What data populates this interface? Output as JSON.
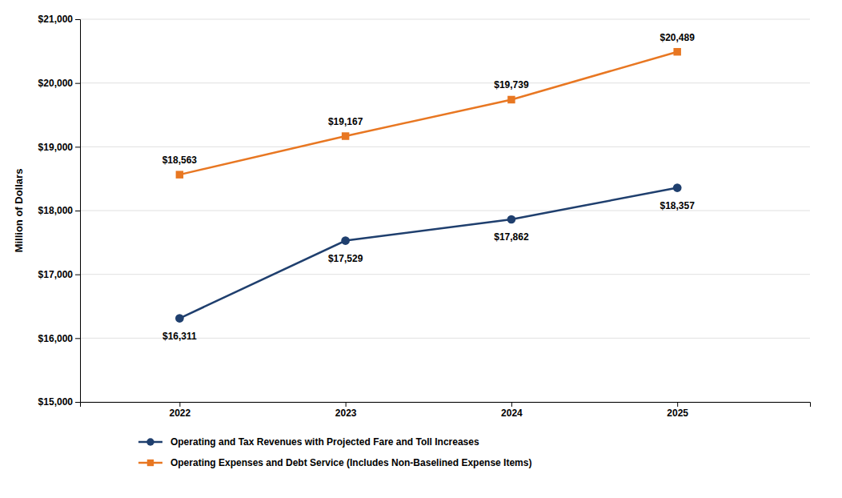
{
  "chart_data": {
    "type": "line",
    "x": [
      2022,
      2023,
      2024,
      2025
    ],
    "xlim": [
      2021.4,
      2025.8
    ],
    "xticks": [
      2022,
      2023,
      2024,
      2025
    ],
    "ylabel": "Million of Dollars",
    "ylim": [
      15000,
      21000
    ],
    "yticks": [
      {
        "value": 15000,
        "label": "$15,000"
      },
      {
        "value": 16000,
        "label": "$16,000"
      },
      {
        "value": 17000,
        "label": "$17,000"
      },
      {
        "value": 18000,
        "label": "$18,000"
      },
      {
        "value": 19000,
        "label": "$19,000"
      },
      {
        "value": 20000,
        "label": "$20,000"
      },
      {
        "value": 21000,
        "label": "$21,000"
      }
    ],
    "grid": true,
    "legend": "bottom",
    "data_labels": true,
    "series": [
      {
        "name": "Operating and Tax Revenues with Projected Fare and Toll Increases",
        "color": "#1f3f6e",
        "marker": "circle",
        "values": [
          16311,
          17529,
          17862,
          18357
        ],
        "value_labels": [
          "$16,311",
          "$17,529",
          "$17,862",
          "$18,357"
        ]
      },
      {
        "name": "Operating Expenses and Debt Service (Includes Non-Baselined Expense Items)",
        "color": "#e87722",
        "marker": "square",
        "values": [
          18563,
          19167,
          19739,
          20489
        ],
        "value_labels": [
          "$18,563",
          "$19,167",
          "$19,739",
          "$20,489"
        ]
      }
    ]
  }
}
